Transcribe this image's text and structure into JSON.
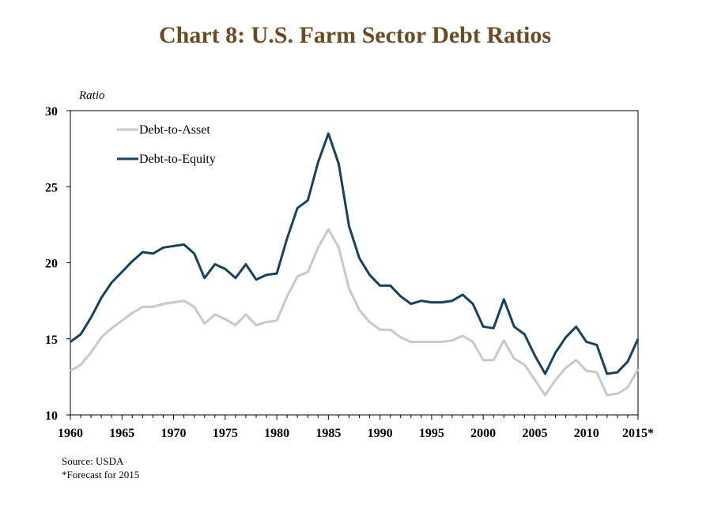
{
  "title": "Chart 8: U.S. Farm Sector Debt Ratios",
  "notes": {
    "source": "Source: USDA",
    "forecast": "*Forecast for 2015"
  },
  "chart_data": {
    "type": "line",
    "ylabel": "Ratio",
    "xlabel": "",
    "ylim": [
      10,
      30
    ],
    "xlim": [
      1960,
      2015
    ],
    "yticks": [
      10,
      15,
      20,
      25,
      30
    ],
    "xticks": [
      1960,
      1965,
      1970,
      1975,
      1980,
      1985,
      1990,
      1995,
      2000,
      2005,
      2010,
      2015
    ],
    "xtick_labels": [
      "1960",
      "1965",
      "1970",
      "1975",
      "1980",
      "1985",
      "1990",
      "1995",
      "2000",
      "2005",
      "2010",
      "2015*"
    ],
    "grid": false,
    "legend": "top-left",
    "x": [
      1960,
      1961,
      1962,
      1963,
      1964,
      1965,
      1966,
      1967,
      1968,
      1969,
      1970,
      1971,
      1972,
      1973,
      1974,
      1975,
      1976,
      1977,
      1978,
      1979,
      1980,
      1981,
      1982,
      1983,
      1984,
      1985,
      1986,
      1987,
      1988,
      1989,
      1990,
      1991,
      1992,
      1993,
      1994,
      1995,
      1996,
      1997,
      1998,
      1999,
      2000,
      2001,
      2002,
      2003,
      2004,
      2005,
      2006,
      2007,
      2008,
      2009,
      2010,
      2011,
      2012,
      2013,
      2014,
      2015
    ],
    "series": [
      {
        "name": "Debt-to-Asset",
        "color": "#c8c8c8",
        "values": [
          12.9,
          13.3,
          14.1,
          15.1,
          15.7,
          16.2,
          16.7,
          17.1,
          17.1,
          17.3,
          17.4,
          17.5,
          17.1,
          16.0,
          16.6,
          16.3,
          15.9,
          16.6,
          15.9,
          16.1,
          16.2,
          17.8,
          19.1,
          19.4,
          21.0,
          22.2,
          21.0,
          18.3,
          16.9,
          16.1,
          15.6,
          15.6,
          15.1,
          14.8,
          14.8,
          14.8,
          14.8,
          14.9,
          15.2,
          14.8,
          13.6,
          13.6,
          14.9,
          13.7,
          13.3,
          12.3,
          11.3,
          12.3,
          13.1,
          13.6,
          12.9,
          12.8,
          11.3,
          11.4,
          11.8,
          13.0
        ]
      },
      {
        "name": "Debt-to-Equity",
        "color": "#17415f",
        "values": [
          14.8,
          15.3,
          16.4,
          17.7,
          18.7,
          19.4,
          20.1,
          20.7,
          20.6,
          21.0,
          21.1,
          21.2,
          20.6,
          19.0,
          19.9,
          19.6,
          19.0,
          19.9,
          18.9,
          19.2,
          19.3,
          21.6,
          23.6,
          24.1,
          26.6,
          28.5,
          26.5,
          22.4,
          20.3,
          19.2,
          18.5,
          18.5,
          17.8,
          17.3,
          17.5,
          17.4,
          17.4,
          17.5,
          17.9,
          17.3,
          15.8,
          15.7,
          17.6,
          15.8,
          15.3,
          13.9,
          12.7,
          14.1,
          15.1,
          15.8,
          14.8,
          14.6,
          12.7,
          12.8,
          13.5,
          15.0
        ]
      }
    ]
  }
}
